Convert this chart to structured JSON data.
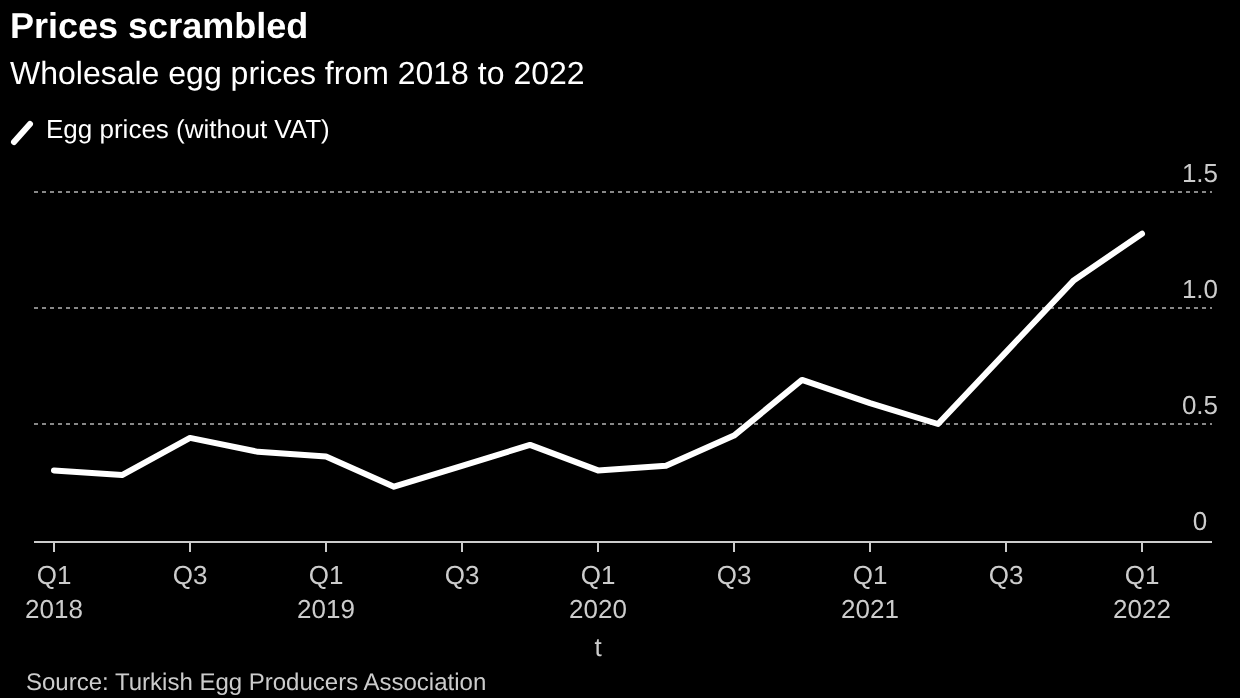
{
  "chart_data": {
    "type": "line",
    "title": "Prices scrambled",
    "subtitle": "Wholesale egg prices from 2018 to 2022",
    "xlabel": "t",
    "categories": [
      "Q1\n2018",
      null,
      "Q3",
      null,
      "Q1\n2019",
      null,
      "Q3",
      null,
      "Q1\n2020",
      null,
      "Q3",
      null,
      "Q1\n2021",
      null,
      "Q3",
      null,
      "Q1\n2022"
    ],
    "series": [
      {
        "name": "Egg prices (without VAT)",
        "color": "#ffffff",
        "values": [
          0.3,
          0.28,
          0.44,
          0.38,
          0.36,
          0.23,
          0.32,
          0.41,
          0.3,
          0.32,
          0.45,
          0.69,
          0.59,
          0.5,
          0.81,
          1.12,
          1.32
        ]
      }
    ],
    "ylim": [
      0,
      1.5
    ],
    "yticks": [
      0,
      0.5,
      {
        "value": 1,
        "label": "1.0"
      },
      1.5
    ],
    "grid": "y",
    "legend": "top left",
    "marker": "none",
    "line_style": "solid",
    "annotations": [
      "Source: Turkish Egg Producers Association"
    ]
  }
}
